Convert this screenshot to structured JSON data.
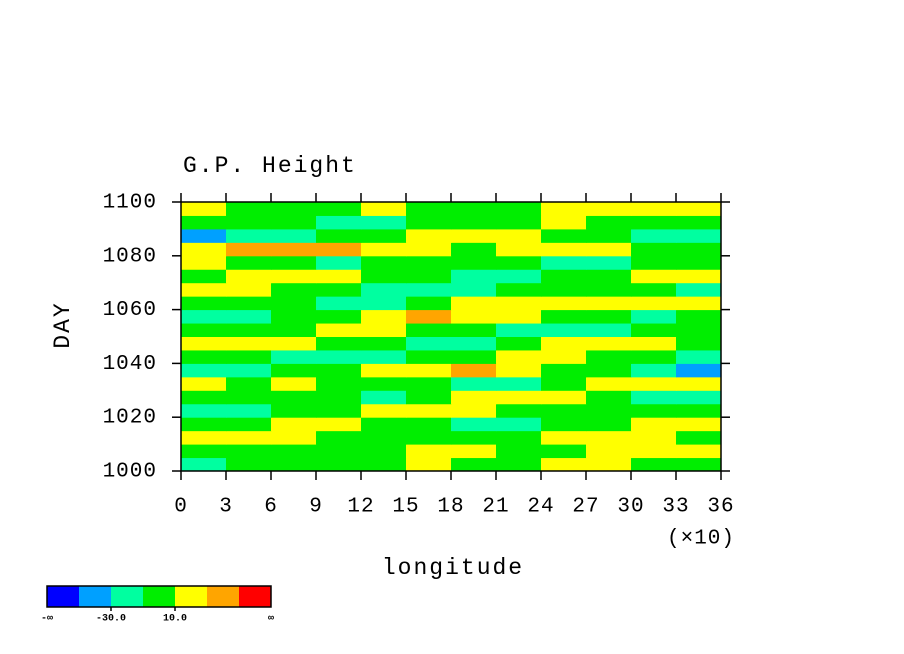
{
  "chart_data": {
    "type": "heatmap",
    "title": "G.P. Height",
    "x_label": "longitude",
    "y_label": "DAY",
    "x_multiplier": "(×10)",
    "xlim": [
      0,
      36
    ],
    "ylim": [
      1000,
      1100
    ],
    "xticks": [
      0,
      3,
      6,
      9,
      12,
      15,
      18,
      21,
      24,
      27,
      30,
      33,
      36
    ],
    "yticks": [
      1000,
      1020,
      1040,
      1060,
      1080,
      1100
    ],
    "x_edges": [
      0,
      3,
      6,
      9,
      12,
      15,
      18,
      21,
      24,
      27,
      30,
      33,
      36
    ],
    "y_edges": [
      1000,
      1005,
      1010,
      1015,
      1020,
      1025,
      1030,
      1035,
      1040,
      1045,
      1050,
      1055,
      1060,
      1065,
      1070,
      1075,
      1080,
      1085,
      1090,
      1095,
      1100
    ],
    "values": [
      [
        -15,
        -5,
        0,
        5,
        0,
        15,
        -5,
        0,
        20,
        15,
        5,
        0
      ],
      [
        5,
        0,
        -10,
        -5,
        5,
        20,
        10,
        0,
        -5,
        15,
        20,
        10
      ],
      [
        15,
        20,
        10,
        5,
        0,
        -5,
        0,
        5,
        10,
        15,
        10,
        -5
      ],
      [
        0,
        5,
        15,
        20,
        5,
        0,
        -15,
        -20,
        -5,
        0,
        15,
        20
      ],
      [
        -20,
        -15,
        -5,
        5,
        15,
        25,
        20,
        5,
        0,
        -10,
        -5,
        5
      ],
      [
        -5,
        5,
        0,
        -10,
        -20,
        -5,
        10,
        20,
        15,
        0,
        -15,
        -20
      ],
      [
        10,
        5,
        15,
        5,
        0,
        -10,
        -25,
        -15,
        0,
        10,
        20,
        15
      ],
      [
        -25,
        -15,
        -5,
        5,
        10,
        25,
        35,
        20,
        5,
        -5,
        -20,
        -35
      ],
      [
        5,
        -5,
        -15,
        -25,
        -15,
        -5,
        5,
        10,
        15,
        5,
        -5,
        -15
      ],
      [
        15,
        20,
        10,
        0,
        -10,
        -20,
        -15,
        -5,
        10,
        25,
        20,
        5
      ],
      [
        -10,
        -5,
        5,
        15,
        10,
        0,
        -10,
        -20,
        -25,
        -15,
        -5,
        -10
      ],
      [
        -30,
        -20,
        -10,
        5,
        15,
        30,
        25,
        15,
        0,
        -10,
        -15,
        -5
      ],
      [
        5,
        0,
        -10,
        -20,
        -15,
        0,
        15,
        20,
        25,
        20,
        15,
        10
      ],
      [
        20,
        15,
        5,
        -5,
        -15,
        -25,
        -20,
        -10,
        0,
        -5,
        -10,
        -20
      ],
      [
        0,
        10,
        20,
        15,
        5,
        -5,
        -15,
        -20,
        -10,
        5,
        15,
        20
      ],
      [
        15,
        5,
        -5,
        -15,
        -10,
        0,
        5,
        -5,
        -15,
        -20,
        -10,
        -5
      ],
      [
        25,
        35,
        30,
        40,
        25,
        10,
        5,
        15,
        20,
        10,
        5,
        0
      ],
      [
        -35,
        -25,
        -15,
        -5,
        5,
        10,
        20,
        15,
        5,
        -5,
        -15,
        -25
      ],
      [
        0,
        -5,
        -10,
        -15,
        -20,
        -10,
        -5,
        5,
        10,
        5,
        -5,
        0
      ],
      [
        10,
        -5,
        5,
        0,
        10,
        5,
        -5,
        0,
        15,
        10,
        20,
        25
      ]
    ],
    "levels": [
      -50,
      -30,
      -10,
      10,
      30,
      50
    ],
    "colors": [
      "#0000ff",
      "#00a0ff",
      "#00ffa0",
      "#00ee00",
      "#ffff00",
      "#ffa500",
      "#ff0000"
    ],
    "colorbar_ticks": [
      {
        "value": -30,
        "label": "-30.0"
      },
      {
        "value": 10,
        "label": "10.0"
      }
    ],
    "colorbar_min_label": "-∞",
    "colorbar_max_label": "∞"
  }
}
